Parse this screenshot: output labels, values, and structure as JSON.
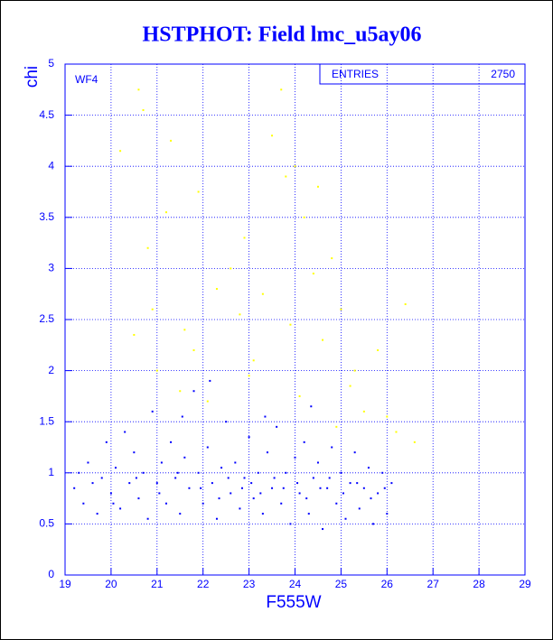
{
  "chart_data": {
    "type": "scatter",
    "title": "HSTPHOT: Field lmc_u5ay06",
    "x_label": "F555W",
    "y_label": "chi",
    "panel_label": "WF4",
    "stats_label": "ENTRIES",
    "entries": 2750,
    "xlim": [
      19,
      29
    ],
    "ylim": [
      0,
      5
    ],
    "xticks": [
      19,
      20,
      21,
      22,
      23,
      24,
      25,
      26,
      27,
      28,
      29
    ],
    "yticks": [
      0,
      0.5,
      1,
      1.5,
      2,
      2.5,
      3,
      3.5,
      4,
      4.5,
      5
    ],
    "grid": true,
    "series": [
      {
        "color": "#0000ff",
        "x": [
          19.2,
          19.4,
          19.5,
          19.7,
          19.8,
          19.9,
          20.0,
          20.1,
          20.2,
          20.3,
          20.4,
          20.5,
          20.6,
          20.7,
          20.8,
          20.9,
          21.0,
          21.1,
          21.2,
          21.3,
          21.4,
          21.5,
          21.6,
          21.7,
          21.8,
          21.9,
          22.0,
          22.1,
          22.2,
          22.3,
          22.4,
          22.5,
          22.6,
          22.7,
          22.8,
          22.9,
          23.0,
          23.1,
          23.2,
          23.3,
          23.4,
          23.5,
          23.6,
          23.7,
          23.8,
          23.9,
          24.0,
          24.1,
          24.2,
          24.3,
          24.4,
          24.5,
          24.6,
          24.7,
          24.8,
          24.9,
          25.0,
          25.1,
          25.2,
          25.3,
          25.4,
          25.5,
          25.6,
          25.7,
          25.8,
          25.9,
          26.0,
          26.1,
          19.3,
          19.6,
          20.05,
          20.55,
          21.05,
          21.45,
          21.95,
          22.35,
          22.55,
          22.85,
          23.05,
          23.25,
          23.55,
          23.75,
          24.05,
          24.25,
          24.55,
          24.75,
          25.05,
          25.35,
          25.65,
          25.95,
          22.15,
          21.55,
          24.35,
          23.35
        ],
        "values": [
          0.85,
          0.7,
          1.1,
          0.6,
          0.95,
          1.3,
          0.8,
          1.05,
          0.65,
          1.4,
          0.9,
          1.2,
          0.75,
          1.0,
          0.55,
          1.6,
          0.9,
          1.1,
          0.7,
          1.3,
          0.95,
          0.6,
          1.15,
          0.85,
          1.8,
          1.0,
          0.7,
          1.25,
          0.9,
          0.55,
          1.05,
          1.5,
          0.8,
          1.1,
          0.65,
          0.95,
          1.35,
          0.75,
          1.0,
          0.6,
          1.2,
          0.85,
          1.45,
          0.7,
          1.0,
          0.5,
          1.15,
          0.8,
          1.3,
          0.6,
          0.95,
          1.1,
          0.45,
          0.85,
          1.25,
          0.7,
          1.0,
          0.55,
          0.9,
          1.2,
          0.65,
          0.85,
          1.05,
          0.5,
          0.8,
          1.0,
          0.6,
          0.9,
          1.0,
          0.9,
          0.7,
          0.95,
          0.8,
          1.0,
          0.85,
          0.75,
          0.95,
          0.85,
          0.9,
          0.8,
          0.95,
          0.85,
          0.9,
          0.75,
          0.85,
          0.95,
          0.8,
          0.9,
          0.75,
          0.85,
          1.9,
          1.55,
          1.65,
          1.55
        ]
      },
      {
        "color": "#ffff00",
        "x": [
          20.2,
          20.6,
          20.7,
          21.3,
          21.6,
          21.2,
          20.8,
          20.5,
          21.0,
          21.9,
          22.3,
          22.6,
          22.8,
          23.1,
          23.3,
          23.5,
          23.7,
          23.8,
          24.0,
          24.2,
          24.4,
          24.6,
          24.8,
          25.0,
          25.2,
          25.5,
          25.8,
          26.0,
          26.2,
          26.4,
          26.6,
          22.1,
          23.0,
          24.1,
          24.9,
          21.5,
          22.9,
          23.9,
          25.3,
          21.8,
          20.9,
          24.5
        ],
        "values": [
          4.15,
          4.75,
          4.55,
          4.25,
          2.4,
          3.55,
          3.2,
          2.35,
          2.0,
          3.75,
          2.8,
          3.0,
          2.55,
          2.1,
          2.75,
          4.3,
          4.75,
          3.9,
          4.0,
          3.5,
          2.95,
          2.3,
          3.1,
          2.6,
          1.85,
          1.6,
          2.2,
          1.55,
          1.4,
          2.65,
          1.3,
          1.7,
          1.95,
          1.75,
          1.45,
          1.8,
          3.3,
          2.45,
          2.0,
          2.2,
          2.6,
          3.8
        ]
      }
    ]
  }
}
